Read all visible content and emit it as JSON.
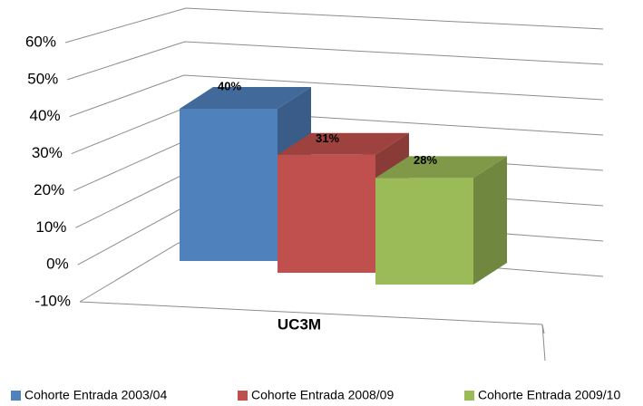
{
  "chart_data": {
    "type": "bar3d",
    "categories": [
      "UC3M"
    ],
    "series": [
      {
        "name": "Cohorte Entrada 2003/04",
        "color": "#4f81bd",
        "values": [
          40
        ],
        "value_labels": [
          "40%"
        ]
      },
      {
        "name": "Cohorte Entrada 2008/09",
        "color": "#c0504d",
        "values": [
          31
        ],
        "value_labels": [
          "31%"
        ]
      },
      {
        "name": "Cohorte Entrada 2009/10",
        "color": "#9bbb59",
        "values": [
          28
        ],
        "value_labels": [
          "28%"
        ]
      }
    ],
    "ylim": [
      -10,
      60
    ],
    "yticks": [
      {
        "value": -10,
        "label": "-10%"
      },
      {
        "value": 0,
        "label": "0%"
      },
      {
        "value": 10,
        "label": "10%"
      },
      {
        "value": 20,
        "label": "20%"
      },
      {
        "value": 30,
        "label": "30%"
      },
      {
        "value": 40,
        "label": "40%"
      },
      {
        "value": 50,
        "label": "50%"
      },
      {
        "value": 60,
        "label": "60%"
      }
    ],
    "grid": true,
    "legend": "bottom"
  }
}
